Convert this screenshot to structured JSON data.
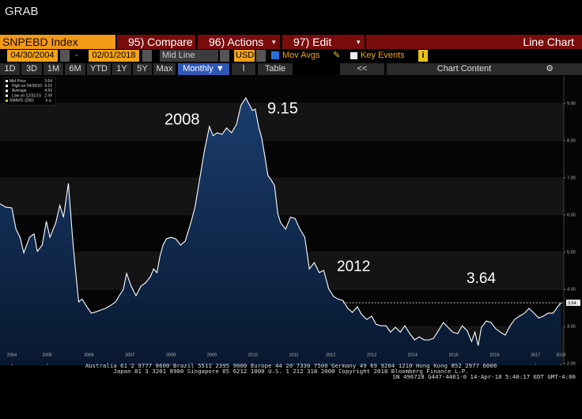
{
  "ui": {
    "header": "GRAB",
    "ticker": "SNPEBD Index",
    "menu": [
      "95) Compare",
      "96) Actions",
      "97) Edit"
    ],
    "view": "Line Chart",
    "start_date": "04/30/2004",
    "end_date": "02/01/2018",
    "price_type": "Mid Line",
    "currency": "USD",
    "mov_avgs": "Mov Avgs",
    "key_events": "Key Events",
    "ranges": [
      "1D",
      "3D",
      "1M",
      "6M",
      "YTD",
      "1Y",
      "5Y",
      "Max"
    ],
    "period": "Monthly",
    "table": "Table",
    "back": "<<",
    "chart_content": "Chart Content",
    "footer": [
      "Australia 61 2 9777 8600 Brazil 5511 2395 9000 Europe 44 20 7330 7500 Germany 49 69 9204 1210 Hong Kong 852 2977 6000",
      "Japan 81 3 3201 8900     Singapore 65 6212 1000     U.S. 1 212 318 2000     Copyright 2018 Bloomberg Finance L.P.",
      "SN 496728 G447-4461-0 14-Apr-18  5:40:17 EDT  GMT-4:00"
    ]
  },
  "chart_data": {
    "type": "line",
    "legend": [
      {
        "label": "Mid Price",
        "value": 3.64
      },
      {
        "label": "High on 04/30/10",
        "value": 9.15
      },
      {
        "label": "Average",
        "value": 4.59
      },
      {
        "label": "Low on 12/31/15",
        "value": 2.49
      },
      {
        "label": "SMAVG (200)",
        "value": "n.a."
      }
    ],
    "annotations": [
      "2008",
      "9.15",
      "2012",
      "3.64"
    ],
    "last_value": 3.64,
    "xlim": [
      2004.33,
      2018.09
    ],
    "ylim": [
      1.96,
      9.74
    ],
    "xticks": [
      {
        "value": 2004.62,
        "label": "2004"
      },
      {
        "value": 2005.48,
        "label": "2005"
      },
      {
        "value": 2006.5,
        "label": "2006"
      },
      {
        "value": 2007.5,
        "label": "2007"
      },
      {
        "value": 2008.5,
        "label": "2008"
      },
      {
        "value": 2009.5,
        "label": "2009"
      },
      {
        "value": 2010.5,
        "label": "2010"
      },
      {
        "value": 2011.5,
        "label": "2011"
      },
      {
        "value": 2012.4,
        "label": "2012"
      },
      {
        "value": 2013.4,
        "label": "2013"
      },
      {
        "value": 2014.4,
        "label": "2014"
      },
      {
        "value": 2015.4,
        "label": "2015"
      },
      {
        "value": 2016.4,
        "label": "2016"
      },
      {
        "value": 2017.4,
        "label": "2017"
      },
      {
        "value": 2018.02,
        "label": "2018"
      }
    ],
    "yticks": [
      {
        "value": 2,
        "label": "2.00"
      },
      {
        "value": 3,
        "label": "3.00"
      },
      {
        "value": 4,
        "label": "4.00"
      },
      {
        "value": 5,
        "label": "5.00"
      },
      {
        "value": 6,
        "label": "6.00"
      },
      {
        "value": 7,
        "label": "7.00"
      },
      {
        "value": 8,
        "label": "8.00"
      },
      {
        "value": 9,
        "label": "9.00"
      }
    ],
    "grid": true,
    "series": [
      {
        "name": "Mid Price",
        "color": "#ffffff",
        "x": [
          2004.33,
          2004.47,
          2004.62,
          2004.72,
          2004.82,
          2004.91,
          2005.05,
          2005.16,
          2005.24,
          2005.36,
          2005.46,
          2005.55,
          2005.69,
          2005.79,
          2005.88,
          2006.0,
          2006.1,
          2006.17,
          2006.25,
          2006.33,
          2006.45,
          2006.56,
          2006.68,
          2006.8,
          2006.91,
          2007.03,
          2007.15,
          2007.24,
          2007.34,
          2007.42,
          2007.53,
          2007.65,
          2007.77,
          2007.88,
          2008.0,
          2008.08,
          2008.16,
          2008.23,
          2008.31,
          2008.39,
          2008.5,
          2008.62,
          2008.74,
          2008.85,
          2008.97,
          2009.09,
          2009.2,
          2009.32,
          2009.44,
          2009.53,
          2009.63,
          2009.75,
          2009.86,
          2009.98,
          2010.1,
          2010.21,
          2010.33,
          2010.49,
          2010.56,
          2010.64,
          2010.72,
          2010.8,
          2010.87,
          2010.95,
          2011.03,
          2011.11,
          2011.18,
          2011.3,
          2011.42,
          2011.53,
          2011.65,
          2011.77,
          2011.88,
          2012.0,
          2012.12,
          2012.23,
          2012.35,
          2012.47,
          2012.58,
          2012.7,
          2012.82,
          2012.93,
          2013.05,
          2013.16,
          2013.28,
          2013.4,
          2013.51,
          2013.63,
          2013.75,
          2013.86,
          2013.98,
          2014.1,
          2014.21,
          2014.33,
          2014.45,
          2014.56,
          2014.68,
          2014.8,
          2014.91,
          2015.03,
          2015.15,
          2015.26,
          2015.38,
          2015.5,
          2015.61,
          2015.73,
          2015.84,
          2015.92,
          2016.0,
          2016.08,
          2016.2,
          2016.31,
          2016.43,
          2016.54,
          2016.66,
          2016.78,
          2016.89,
          2017.01,
          2017.13,
          2017.24,
          2017.36,
          2017.48,
          2017.59,
          2017.71,
          2017.83,
          2017.94,
          2018.02
        ],
        "values": [
          6.3,
          6.21,
          6.19,
          5.62,
          5.4,
          4.98,
          5.4,
          5.49,
          5.02,
          5.19,
          5.83,
          5.4,
          5.79,
          6.26,
          5.94,
          6.85,
          5.4,
          4.55,
          3.66,
          3.74,
          3.53,
          3.36,
          3.4,
          3.45,
          3.49,
          3.57,
          3.66,
          3.83,
          4.0,
          4.43,
          4.09,
          3.83,
          4.09,
          4.17,
          4.34,
          4.55,
          4.45,
          4.87,
          5.19,
          5.36,
          5.4,
          5.36,
          5.19,
          5.3,
          5.72,
          6.21,
          6.94,
          7.74,
          8.38,
          8.13,
          8.21,
          8.17,
          8.34,
          8.21,
          8.43,
          8.95,
          9.15,
          8.81,
          8.85,
          8.38,
          8.06,
          7.53,
          7.06,
          6.94,
          6.79,
          6.04,
          5.79,
          5.62,
          5.94,
          5.91,
          5.62,
          5.4,
          4.55,
          4.72,
          4.45,
          4.51,
          4.02,
          3.81,
          3.74,
          3.7,
          3.49,
          3.38,
          3.53,
          3.32,
          3.19,
          3.28,
          3.06,
          3.02,
          3.02,
          2.85,
          2.98,
          2.85,
          3.02,
          2.81,
          2.64,
          2.72,
          2.64,
          2.64,
          2.68,
          2.89,
          3.11,
          2.98,
          2.85,
          2.81,
          3.02,
          2.89,
          2.6,
          2.85,
          2.49,
          2.98,
          3.15,
          3.11,
          2.94,
          2.85,
          2.77,
          3.02,
          3.19,
          3.28,
          3.36,
          3.49,
          3.36,
          3.23,
          3.28,
          3.36,
          3.36,
          3.53,
          3.64
        ]
      }
    ]
  }
}
